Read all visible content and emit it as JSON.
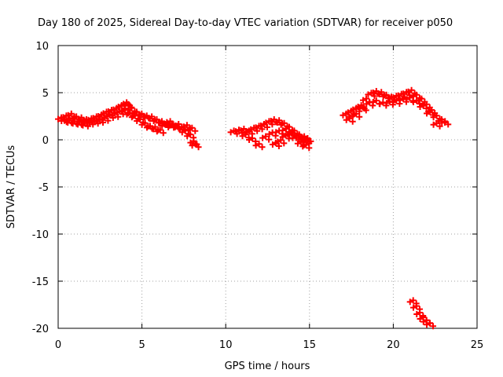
{
  "chart_data": {
    "type": "scatter",
    "title": "Day 180 of 2025, Sidereal Day-to-day VTEC variation (SDTVAR) for receiver p050",
    "xlabel": "GPS time / hours",
    "ylabel": "SDTVAR / TECUs",
    "xlim": [
      0,
      25
    ],
    "ylim": [
      -20,
      10
    ],
    "xticks": [
      "0",
      "5",
      "10",
      "15",
      "20",
      "25"
    ],
    "yticks": [
      "10",
      "5",
      "0",
      "-5",
      "-10",
      "-15",
      "-20"
    ],
    "grid": true,
    "marker": "plus",
    "color": "#ff0000",
    "series": [
      {
        "name": "SDTVAR",
        "x": [
          0.0,
          0.3,
          0.6,
          0.9,
          1.2,
          1.5,
          1.8,
          2.1,
          2.4,
          2.7,
          3.0,
          3.3,
          3.6,
          3.9,
          4.0,
          4.2,
          4.5,
          4.8,
          5.1,
          5.4,
          5.7,
          6.0,
          6.3,
          6.6,
          6.9,
          7.2,
          7.5,
          7.8,
          8.0,
          0.2,
          0.5,
          0.8,
          1.1,
          1.4,
          1.7,
          2.0,
          2.3,
          2.6,
          2.9,
          3.2,
          3.5,
          3.8,
          4.1,
          4.4,
          4.7,
          5.0,
          5.3,
          5.6,
          5.9,
          6.2,
          6.5,
          7.0,
          7.4,
          7.7,
          7.9,
          10.3,
          10.6,
          10.9,
          11.2,
          11.5,
          11.8,
          12.1,
          12.4,
          12.7,
          13.0,
          13.3,
          13.6,
          13.9,
          14.2,
          14.5,
          14.7,
          11.0,
          11.4,
          11.8,
          12.2,
          12.6,
          13.0,
          13.4,
          13.8,
          14.2,
          14.6,
          12.8,
          13.1,
          13.4,
          13.7,
          14.0,
          14.3,
          14.6,
          17.0,
          17.3,
          17.6,
          17.9,
          18.2,
          18.5,
          18.8,
          19.1,
          19.4,
          19.7,
          20.0,
          20.3,
          20.6,
          20.9,
          21.2,
          21.5,
          21.8,
          22.1,
          22.4,
          22.7,
          22.9,
          17.2,
          17.6,
          18.0,
          18.4,
          18.8,
          19.2,
          19.6,
          20.0,
          20.4,
          20.8,
          21.2,
          21.6,
          22.0,
          22.4,
          21.0,
          21.2,
          21.4,
          21.6,
          21.8,
          22.0
        ],
        "y": [
          2.2,
          2.4,
          2.6,
          2.3,
          2.2,
          2.0,
          2.1,
          2.3,
          2.5,
          2.8,
          3.0,
          3.2,
          3.5,
          3.8,
          3.6,
          3.2,
          2.8,
          2.6,
          2.4,
          2.3,
          2.0,
          1.8,
          1.7,
          1.5,
          1.3,
          1.2,
          1.4,
          1.1,
          -0.6,
          2.0,
          1.9,
          1.8,
          1.7,
          1.6,
          1.8,
          1.9,
          2.0,
          2.2,
          2.5,
          2.6,
          2.9,
          3.0,
          2.7,
          2.4,
          2.0,
          1.6,
          1.3,
          1.2,
          0.9,
          1.5,
          1.8,
          1.5,
          0.8,
          0.4,
          -0.3,
          0.8,
          0.9,
          1.0,
          0.8,
          1.1,
          1.3,
          1.5,
          1.8,
          2.0,
          1.9,
          1.6,
          1.2,
          0.8,
          0.4,
          0.2,
          0.0,
          0.4,
          0.0,
          -0.6,
          0.2,
          0.6,
          0.8,
          1.0,
          0.6,
          0.2,
          -0.2,
          -0.5,
          -0.2,
          0.3,
          0.6,
          0.2,
          -0.4,
          -0.7,
          2.6,
          2.9,
          3.2,
          3.5,
          4.2,
          4.8,
          5.0,
          4.9,
          4.6,
          4.4,
          4.5,
          4.7,
          4.9,
          5.1,
          4.6,
          4.2,
          3.6,
          3.0,
          2.4,
          2.0,
          1.8,
          2.1,
          2.6,
          3.3,
          3.8,
          4.0,
          3.8,
          3.9,
          4.0,
          4.2,
          4.3,
          4.0,
          3.5,
          2.8,
          1.6,
          -17.2,
          -17.8,
          -18.5,
          -19.0,
          -19.3,
          -19.6
        ]
      }
    ]
  }
}
